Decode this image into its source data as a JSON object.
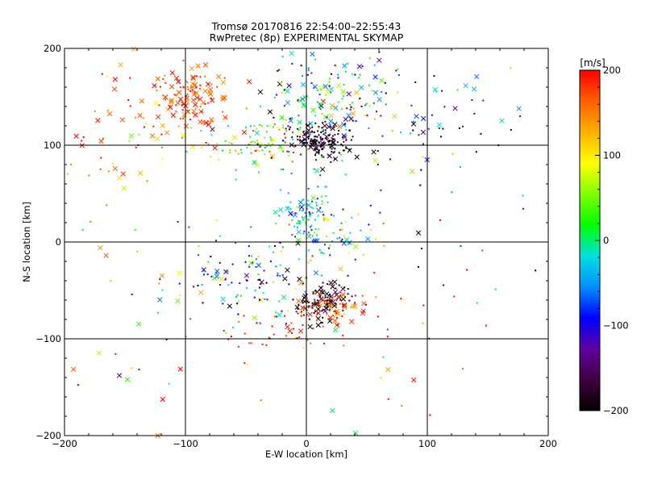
{
  "title_line1": "Tromsø 20170816 22:54:00–22:55:43",
  "title_line2": "RwPretec (8p) EXPERIMENTAL SKYMAP",
  "chart_data": {
    "type": "scatter",
    "xlabel": "E-W location [km]",
    "ylabel": "N-S location [km]",
    "xlim": [
      -200,
      200
    ],
    "ylim": [
      -200,
      200
    ],
    "xticks": [
      -200,
      -100,
      0,
      100,
      200
    ],
    "yticks": [
      -200,
      -100,
      0,
      100,
      200
    ],
    "grid": true,
    "colorbar": {
      "label": "[m/s]",
      "range": [
        -200,
        200
      ],
      "ticks": [
        -200,
        -100,
        0,
        100,
        200
      ],
      "colormap": [
        "#000000",
        "#400040",
        "#6000a0",
        "#0000ff",
        "#0090ff",
        "#00e0e0",
        "#00ff00",
        "#80ff00",
        "#ffff00",
        "#ffb000",
        "#ff6000",
        "#ff0000"
      ]
    },
    "markers": [
      "small dot",
      "x"
    ],
    "clusters": [
      {
        "x": -95,
        "y": 150,
        "sx": 18,
        "sy": 15,
        "v": 170,
        "sv": 30,
        "n": 120,
        "crossFrac": 0.45
      },
      {
        "x": -30,
        "y": 105,
        "sx": 25,
        "sy": 12,
        "v": 60,
        "sv": 80,
        "n": 120,
        "crossFrac": 0.15
      },
      {
        "x": 10,
        "y": 105,
        "sx": 12,
        "sy": 10,
        "v": -190,
        "sv": 25,
        "n": 150,
        "crossFrac": 0.2
      },
      {
        "x": 15,
        "y": 150,
        "sx": 25,
        "sy": 20,
        "v": -30,
        "sv": 90,
        "n": 110,
        "crossFrac": 0.3
      },
      {
        "x": 0,
        "y": 30,
        "sx": 10,
        "sy": 15,
        "v": -30,
        "sv": 40,
        "n": 90,
        "crossFrac": 0.15
      },
      {
        "x": 20,
        "y": 0,
        "sx": 15,
        "sy": 15,
        "v": 40,
        "sv": 80,
        "n": 60,
        "crossFrac": 0.1
      },
      {
        "x": 15,
        "y": -62,
        "sx": 12,
        "sy": 10,
        "v": -200,
        "sv": 30,
        "n": 110,
        "crossFrac": 0.25
      },
      {
        "x": 20,
        "y": -70,
        "sx": 15,
        "sy": 10,
        "v": 175,
        "sv": 25,
        "n": 70,
        "crossFrac": 0.35
      },
      {
        "x": -40,
        "y": -40,
        "sx": 30,
        "sy": 25,
        "v": -80,
        "sv": 120,
        "n": 110,
        "crossFrac": 0.15
      },
      {
        "x": -30,
        "y": -95,
        "sx": 20,
        "sy": 10,
        "v": 190,
        "sv": 20,
        "n": 30,
        "crossFrac": 0.1
      },
      {
        "x": -140,
        "y": 100,
        "sx": 40,
        "sy": 40,
        "v": 160,
        "sv": 50,
        "n": 70,
        "crossFrac": 0.35
      },
      {
        "x": 70,
        "y": 130,
        "sx": 50,
        "sy": 40,
        "v": -140,
        "sv": 120,
        "n": 90,
        "crossFrac": 0.3
      },
      {
        "x": 120,
        "y": 60,
        "sx": 50,
        "sy": 80,
        "v": -100,
        "sv": 120,
        "n": 40,
        "crossFrac": 0.2
      },
      {
        "x": -120,
        "y": -80,
        "sx": 50,
        "sy": 60,
        "v": 80,
        "sv": 120,
        "n": 40,
        "crossFrac": 0.35
      },
      {
        "x": 60,
        "y": -90,
        "sx": 50,
        "sy": 60,
        "v": 120,
        "sv": 110,
        "n": 40,
        "crossFrac": 0.2
      }
    ]
  }
}
